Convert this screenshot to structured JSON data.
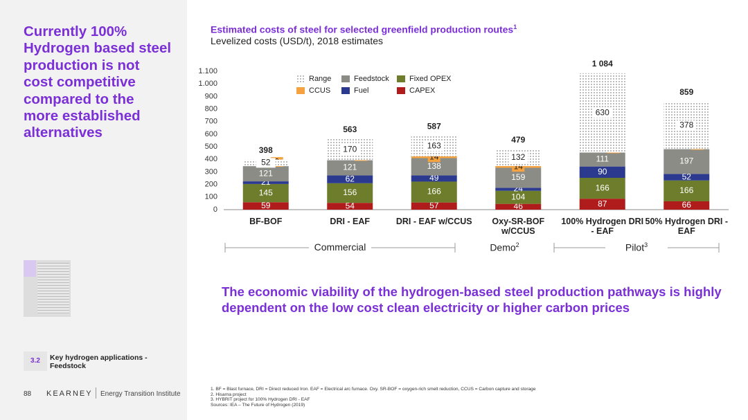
{
  "headline": "Currently 100% Hydrogen based steel production is not cost competitive compared to the more established alternatives",
  "section": {
    "number": "3.2",
    "title": "Key hydrogen applications - Feedstock"
  },
  "footer": {
    "page": "88",
    "brand": "KEARNEY",
    "unit": "Energy Transition Institute"
  },
  "message": "The economic viability of the hydrogen-based steel production pathways is highly dependent on the low cost clean electricity or higher carbon prices",
  "footnotes": [
    "1. BF = Blast furnace, DRI = Direct reduced Iron. EAF = Electrical arc furnace. Oxy. SR-BOF = oxygen-rich smelt reduction, CCUS = Carbon capture and storage",
    "2. Hisarna project",
    "3. HYBRIT project for 100% Hydrogen DRI - EAF",
    "Sources: IEA – The Future of Hydrogen (2019)"
  ],
  "chart_data": {
    "type": "stacked_bar",
    "title": "Estimated costs of steel for selected greenfield production routes",
    "title_note": "1",
    "subtitle": "Levelized costs (USD/t), 2018 estimates",
    "categories": [
      "BF-BOF",
      "DRI - EAF",
      "DRI - EAF w/CCUS",
      "Oxy-SR-BOF w/CCUS",
      "100% Hydrogen DRI - EAF",
      "50% Hydrogen DRI - EAF"
    ],
    "series": [
      {
        "name": "CAPEX",
        "color": "#b01c1c",
        "values": [
          59,
          54,
          57,
          46,
          87,
          66
        ]
      },
      {
        "name": "Fixed OPEX",
        "color": "#6e7d2b",
        "values": [
          145,
          156,
          166,
          104,
          166,
          166
        ]
      },
      {
        "name": "Fuel",
        "color": "#2b3a8f",
        "values": [
          21,
          62,
          49,
          24,
          90,
          52
        ]
      },
      {
        "name": "Feedstock",
        "color": "#8c8c86",
        "values": [
          121,
          121,
          138,
          159,
          111,
          197
        ]
      },
      {
        "name": "CCUS",
        "color": "#f5a340",
        "values": [
          0,
          0,
          14,
          14,
          0,
          0
        ]
      },
      {
        "name": "Range",
        "color": "#555555",
        "pattern": "dots",
        "values": [
          52,
          170,
          163,
          132,
          630,
          378
        ]
      }
    ],
    "totals": {
      "values": [
        398,
        563,
        587,
        479,
        1084,
        859
      ],
      "value_labels": [
        "398",
        "563",
        "587",
        "479",
        "1 084",
        "859"
      ]
    },
    "ylim": [
      0,
      1100
    ],
    "yticks": [
      0,
      100,
      200,
      300,
      400,
      500,
      600,
      700,
      800,
      900,
      {
        "value": 1000,
        "label": "1.000"
      },
      {
        "value": 1100,
        "label": "1.100"
      }
    ],
    "groups": [
      {
        "label": "Commercial"
      },
      {
        "label": "Demo",
        "note": "2"
      },
      {
        "label": "Pilot",
        "note": "3"
      }
    ]
  }
}
